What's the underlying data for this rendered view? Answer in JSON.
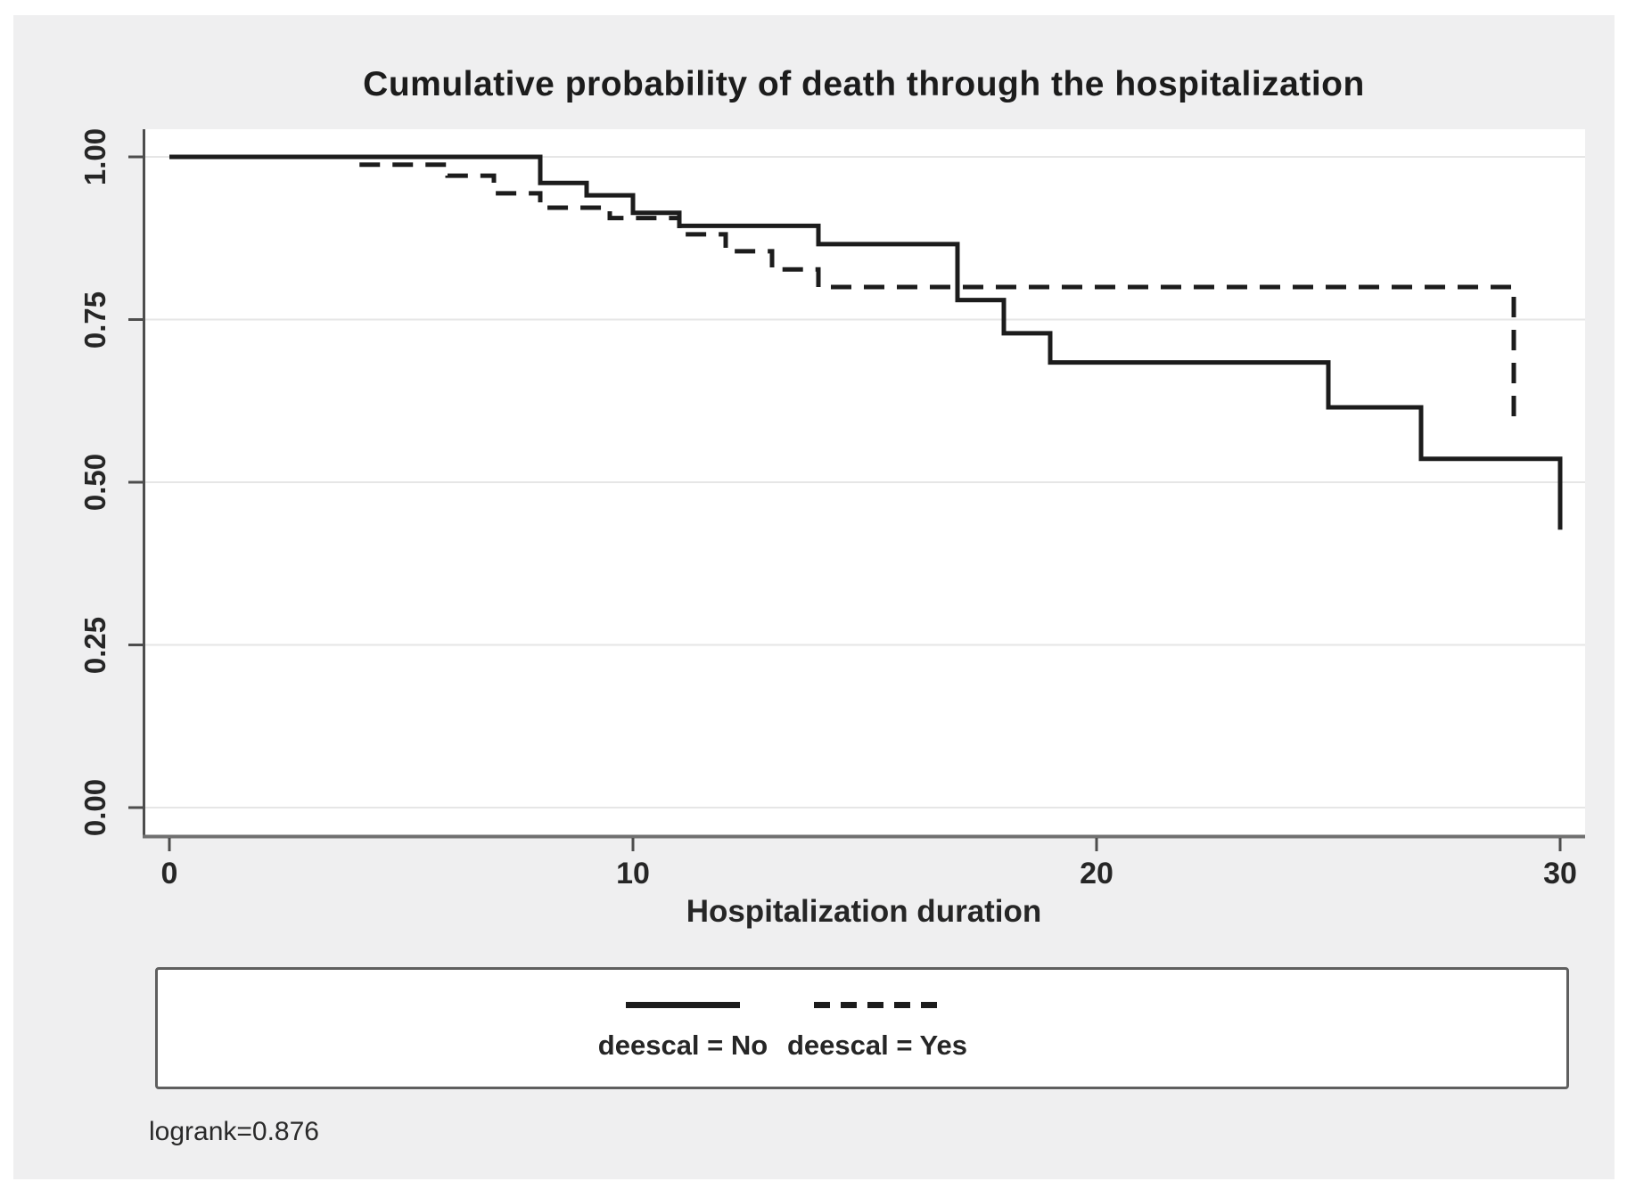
{
  "figure": {
    "title": "Cumulative probability of death through the hospitalization",
    "x_axis_title": "Hospitalization duration",
    "y_tick_labels": [
      "1.00",
      "0.75",
      "0.50",
      "0.25",
      "0.00"
    ],
    "x_tick_labels": [
      "0",
      "10",
      "20",
      "30"
    ],
    "legend": [
      {
        "label": "deescal = No",
        "style": "solid"
      },
      {
        "label": "deescal = Yes",
        "style": "dashed"
      }
    ],
    "annotation": "logrank=0.876"
  },
  "chart_data": {
    "type": "line",
    "subtype": "kaplan-meier-step",
    "title": "Cumulative probability of death through the hospitalization",
    "xlabel": "Hospitalization duration",
    "ylabel": "",
    "xlim": [
      0,
      30.5
    ],
    "ylim": [
      0,
      1.0
    ],
    "x_ticks": [
      0,
      10,
      20,
      30
    ],
    "y_ticks": [
      1.0,
      0.75,
      0.5,
      0.25,
      0.0
    ],
    "grid": "horizontal",
    "legend_position": "bottom",
    "line_color": "#1c1c1c",
    "series": [
      {
        "name": "deescal = No",
        "line_style": "solid",
        "points": [
          [
            0,
            1.0
          ],
          [
            8,
            0.96
          ],
          [
            9,
            0.941
          ],
          [
            10,
            0.914
          ],
          [
            11,
            0.894
          ],
          [
            14,
            0.866
          ],
          [
            17,
            0.78
          ],
          [
            18,
            0.729
          ],
          [
            19,
            0.684
          ],
          [
            25,
            0.615
          ],
          [
            27,
            0.536
          ],
          [
            30,
            0.427
          ]
        ]
      },
      {
        "name": "deescal = Yes",
        "line_style": "dashed",
        "points": [
          [
            0,
            1.0
          ],
          [
            4,
            0.988
          ],
          [
            6,
            0.971
          ],
          [
            7,
            0.944
          ],
          [
            8,
            0.922
          ],
          [
            9.5,
            0.906
          ],
          [
            11,
            0.881
          ],
          [
            12,
            0.855
          ],
          [
            13,
            0.827
          ],
          [
            14,
            0.8
          ],
          [
            29,
            0.601
          ]
        ]
      }
    ],
    "annotation": "logrank=0.876"
  }
}
